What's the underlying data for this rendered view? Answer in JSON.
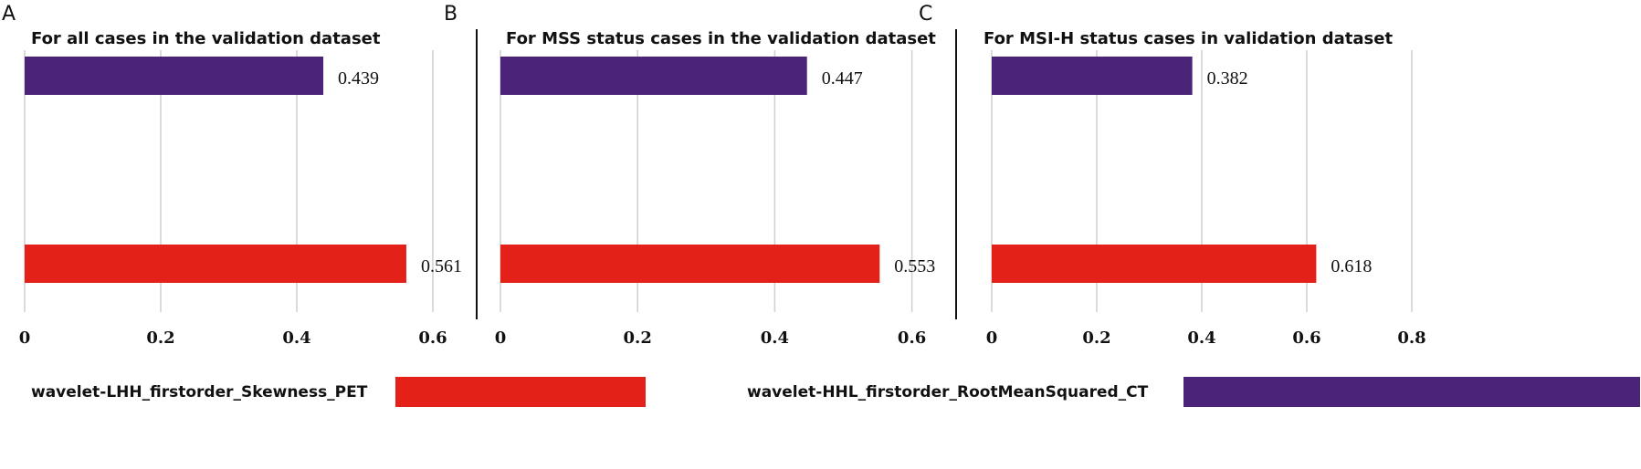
{
  "colors": {
    "skewness_pet": "#e32119",
    "rms_ct": "#4b2378"
  },
  "chart_data": [
    {
      "type": "bar",
      "panel": "A",
      "title": "For all cases in the validation dataset",
      "orientation": "horizontal",
      "xlim": [
        0,
        0.6
      ],
      "ticks": [
        0,
        0.2,
        0.4,
        0.6
      ],
      "tick_labels": [
        "0",
        "0.2",
        "0.4",
        "0.6"
      ],
      "series": [
        {
          "name": "wavelet-HHL_firstorder_RootMeanSquared_CT",
          "value": 0.439,
          "label": "0.439"
        },
        {
          "name": "wavelet-LHH_firstorder_Skewness_PET",
          "value": 0.561,
          "label": "0.561"
        }
      ],
      "grid": true
    },
    {
      "type": "bar",
      "panel": "B",
      "title": "For MSS status cases in the validation dataset",
      "orientation": "horizontal",
      "xlim": [
        0,
        0.6
      ],
      "ticks": [
        0,
        0.2,
        0.4,
        0.6
      ],
      "tick_labels": [
        "0",
        "0.2",
        "0.4",
        "0.6"
      ],
      "series": [
        {
          "name": "wavelet-HHL_firstorder_RootMeanSquared_CT",
          "value": 0.447,
          "label": "0.447"
        },
        {
          "name": "wavelet-LHH_firstorder_Skewness_PET",
          "value": 0.553,
          "label": "0.553"
        }
      ],
      "grid": true
    },
    {
      "type": "bar",
      "panel": "C",
      "title": "For MSI-H status cases in validation dataset",
      "orientation": "horizontal",
      "xlim": [
        0,
        0.8
      ],
      "ticks": [
        0,
        0.2,
        0.4,
        0.6,
        0.8
      ],
      "tick_labels": [
        "0",
        "0.2",
        "0.4",
        "0.6",
        "0.8"
      ],
      "series": [
        {
          "name": "wavelet-HHL_firstorder_RootMeanSquared_CT",
          "value": 0.382,
          "label": "0.382"
        },
        {
          "name": "wavelet-LHH_firstorder_Skewness_PET",
          "value": 0.618,
          "label": "0.618"
        }
      ],
      "grid": true
    }
  ],
  "legend": {
    "placement": "bottom",
    "items": [
      {
        "label": "wavelet-LHH_firstorder_Skewness_PET",
        "color": "#e32119"
      },
      {
        "label": "wavelet-HHL_firstorder_RootMeanSquared_CT",
        "color": "#4b2378"
      }
    ]
  }
}
